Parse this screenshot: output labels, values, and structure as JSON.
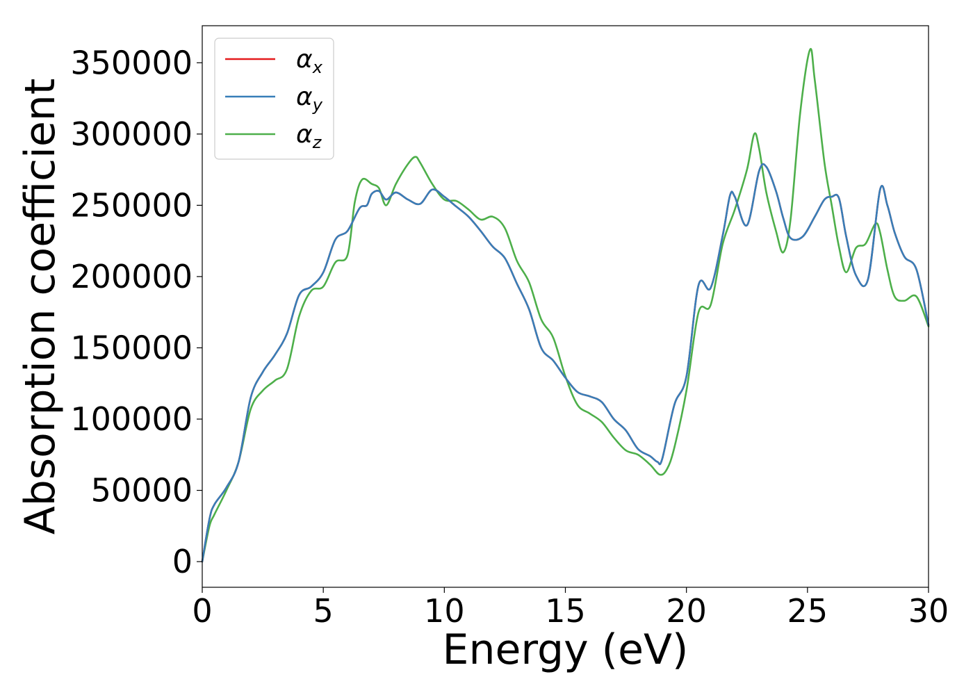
{
  "chart_data": {
    "type": "line",
    "xlabel": "Energy (eV)",
    "ylabel": "Absorption coefficient",
    "xlim": [
      0,
      30
    ],
    "ylim": [
      -18000,
      376000
    ],
    "xticks": [
      0,
      5,
      10,
      15,
      20,
      25,
      30
    ],
    "yticks": [
      0,
      50000,
      100000,
      150000,
      200000,
      250000,
      300000,
      350000
    ],
    "grid": false,
    "legend_position": "top-left",
    "series": [
      {
        "name": "α",
        "subscript": "x",
        "color": "#e41a1c",
        "x": [
          0,
          0.3,
          0.5,
          1.0,
          1.5,
          2.0,
          2.5,
          3.0,
          3.5,
          4.0,
          4.5,
          5.0,
          5.5,
          6.0,
          6.5,
          6.8,
          7.0,
          7.3,
          7.6,
          8.0,
          8.5,
          9.0,
          9.5,
          10.0,
          10.5,
          11.0,
          11.5,
          12.0,
          12.5,
          13.0,
          13.5,
          14.0,
          14.5,
          15.0,
          15.5,
          16.0,
          16.5,
          17.0,
          17.5,
          18.0,
          18.5,
          18.8,
          19.0,
          19.5,
          20.0,
          20.5,
          21.0,
          21.5,
          21.8,
          22.0,
          22.5,
          23.0,
          23.3,
          23.7,
          24.0,
          24.3,
          24.8,
          25.3,
          25.7,
          26.0,
          26.3,
          26.6,
          27.0,
          27.5,
          28.0,
          28.3,
          28.6,
          29.0,
          29.5,
          30.0
        ],
        "y": [
          0,
          30000,
          40000,
          52000,
          70000,
          115000,
          133000,
          145000,
          160000,
          187000,
          193000,
          203000,
          226000,
          232000,
          248000,
          250000,
          258000,
          260000,
          254000,
          259000,
          254000,
          251000,
          261000,
          256000,
          249000,
          242000,
          232000,
          221000,
          213000,
          195000,
          177000,
          150000,
          141000,
          129000,
          119000,
          116000,
          112000,
          100000,
          92000,
          79000,
          74000,
          70000,
          72000,
          110000,
          130000,
          194000,
          192000,
          229000,
          257000,
          256000,
          236000,
          274000,
          277000,
          260000,
          241000,
          227000,
          228000,
          242000,
          254000,
          256000,
          255000,
          228000,
          201000,
          198000,
          261000,
          250000,
          231000,
          214000,
          205000,
          166000
        ]
      },
      {
        "name": "α",
        "subscript": "y",
        "color": "#377eb8",
        "x": [
          0,
          0.3,
          0.5,
          1.0,
          1.5,
          2.0,
          2.5,
          3.0,
          3.5,
          4.0,
          4.5,
          5.0,
          5.5,
          6.0,
          6.5,
          6.8,
          7.0,
          7.3,
          7.6,
          8.0,
          8.5,
          9.0,
          9.5,
          10.0,
          10.5,
          11.0,
          11.5,
          12.0,
          12.5,
          13.0,
          13.5,
          14.0,
          14.5,
          15.0,
          15.5,
          16.0,
          16.5,
          17.0,
          17.5,
          18.0,
          18.5,
          18.8,
          19.0,
          19.5,
          20.0,
          20.5,
          21.0,
          21.5,
          21.8,
          22.0,
          22.5,
          23.0,
          23.3,
          23.7,
          24.0,
          24.3,
          24.8,
          25.3,
          25.7,
          26.0,
          26.3,
          26.6,
          27.0,
          27.5,
          28.0,
          28.3,
          28.6,
          29.0,
          29.5,
          30.0
        ],
        "y": [
          0,
          30000,
          40000,
          52000,
          70000,
          115000,
          133000,
          145000,
          160000,
          187000,
          193000,
          203000,
          226000,
          232000,
          248000,
          250000,
          258000,
          260000,
          254000,
          259000,
          254000,
          251000,
          261000,
          256000,
          249000,
          242000,
          232000,
          221000,
          213000,
          195000,
          177000,
          150000,
          141000,
          129000,
          119000,
          116000,
          112000,
          100000,
          92000,
          79000,
          74000,
          70000,
          72000,
          110000,
          130000,
          194000,
          192000,
          229000,
          257000,
          256000,
          236000,
          274000,
          277000,
          260000,
          241000,
          227000,
          228000,
          242000,
          254000,
          256000,
          255000,
          228000,
          201000,
          198000,
          261000,
          250000,
          231000,
          214000,
          205000,
          166000
        ]
      },
      {
        "name": "α",
        "subscript": "z",
        "color": "#4daf4a",
        "x": [
          0,
          0.3,
          0.5,
          1.0,
          1.5,
          2.0,
          2.5,
          3.0,
          3.5,
          4.0,
          4.5,
          5.0,
          5.5,
          6.0,
          6.3,
          6.6,
          7.0,
          7.3,
          7.6,
          8.0,
          8.5,
          8.8,
          9.0,
          9.5,
          10.0,
          10.5,
          11.0,
          11.5,
          12.0,
          12.5,
          13.0,
          13.5,
          14.0,
          14.5,
          15.0,
          15.5,
          16.0,
          16.5,
          17.0,
          17.5,
          18.0,
          18.5,
          18.9,
          19.2,
          19.5,
          20.0,
          20.5,
          21.0,
          21.5,
          22.0,
          22.5,
          22.8,
          23.0,
          23.3,
          23.7,
          24.0,
          24.3,
          24.7,
          25.1,
          25.3,
          25.7,
          26.0,
          26.3,
          26.6,
          27.0,
          27.4,
          27.8,
          28.0,
          28.3,
          28.6,
          29.0,
          29.5,
          30.0
        ],
        "y": [
          0,
          25000,
          33000,
          50000,
          70000,
          107000,
          120000,
          127000,
          135000,
          172000,
          190000,
          193000,
          210000,
          215000,
          252000,
          268000,
          265000,
          262000,
          250000,
          265000,
          279000,
          284000,
          280000,
          265000,
          254000,
          253000,
          247000,
          240000,
          242000,
          234000,
          211000,
          196000,
          170000,
          157000,
          130000,
          110000,
          104000,
          98000,
          87000,
          78000,
          75000,
          68000,
          61000,
          65000,
          80000,
          120000,
          175000,
          180000,
          223000,
          247000,
          275000,
          300000,
          290000,
          259000,
          232000,
          217000,
          240000,
          315000,
          359000,
          338000,
          280000,
          250000,
          221000,
          203000,
          220000,
          223000,
          237000,
          231000,
          205000,
          186000,
          183000,
          186000,
          165000
        ]
      }
    ]
  }
}
